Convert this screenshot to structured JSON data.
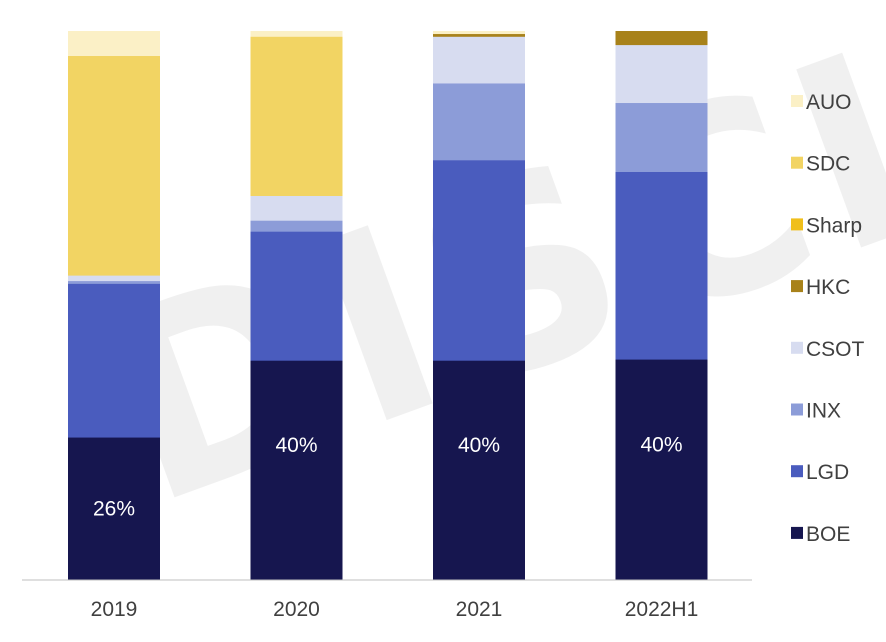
{
  "chart_data": {
    "type": "bar",
    "stacked": true,
    "normalized": true,
    "categories": [
      "2019",
      "2020",
      "2021",
      "2022H1"
    ],
    "series": [
      {
        "name": "BOE",
        "color": "#16164f",
        "values": [
          26,
          40,
          40,
          40
        ]
      },
      {
        "name": "LGD",
        "color": "#4a5cbe",
        "values": [
          28,
          23.5,
          36.5,
          34
        ]
      },
      {
        "name": "INX",
        "color": "#8c9cd8",
        "values": [
          0.5,
          2,
          14,
          12.5
        ]
      },
      {
        "name": "CSOT",
        "color": "#d7dcf0",
        "values": [
          1,
          4.5,
          8.5,
          10.5
        ]
      },
      {
        "name": "HKC",
        "color": "#a8821a",
        "values": [
          0,
          0,
          0.5,
          2.5
        ]
      },
      {
        "name": "Sharp",
        "color": "#f0bf1a",
        "values": [
          0,
          0,
          0,
          0
        ]
      },
      {
        "name": "SDC",
        "color": "#f2d463",
        "values": [
          40,
          29,
          0,
          0
        ]
      },
      {
        "name": "AUO",
        "color": "#fbf0c6",
        "values": [
          4.5,
          1,
          0.5,
          0
        ]
      }
    ],
    "data_labels": [
      "26%",
      "40%",
      "40%",
      "40%"
    ],
    "legend_order": [
      "AUO",
      "SDC",
      "Sharp",
      "HKC",
      "CSOT",
      "INX",
      "LGD",
      "BOE"
    ],
    "legend_position": "right",
    "ylim": [
      0,
      100
    ],
    "grid": false
  },
  "watermark_text": "DISCIEN"
}
